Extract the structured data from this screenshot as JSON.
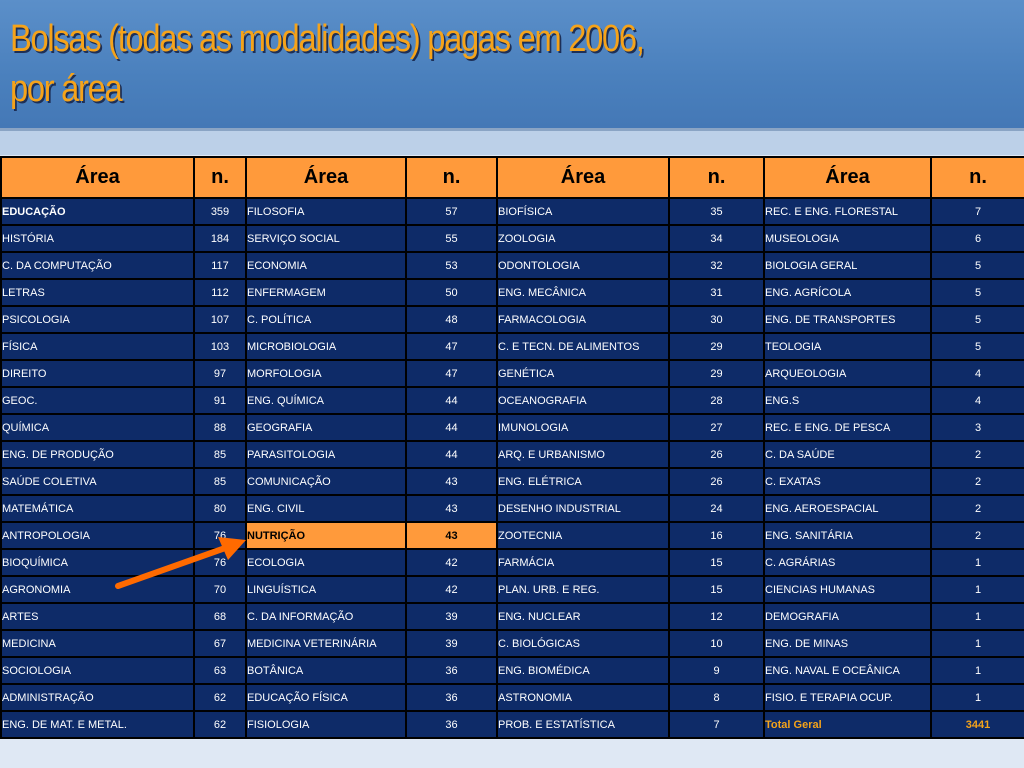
{
  "slide": {
    "title_line1": "Bolsas (todas as modalidades) pagas em 2006,",
    "title_line2": "por área"
  },
  "colors": {
    "title": "#f5a31a",
    "header_bg": "#4a80bd",
    "table_cell_bg": "#0e2b68",
    "column_header_bg": "#ff9a3b",
    "highlight_bg": "#ff9a3b",
    "arrow": "#ff6a00"
  },
  "icons": {
    "arrow": "arrow-icon"
  },
  "table": {
    "headers": [
      "Área",
      "n.",
      "Área",
      "n.",
      "Área",
      "n.",
      "Área",
      "n."
    ],
    "rows": [
      [
        "EDUCAÇÃO",
        "359",
        "FILOSOFIA",
        "57",
        "BIOFÍSICA",
        "35",
        "REC. E ENG. FLORESTAL",
        "7"
      ],
      [
        "HISTÓRIA",
        "184",
        "SERVIÇO SOCIAL",
        "55",
        "ZOOLOGIA",
        "34",
        "MUSEOLOGIA",
        "6"
      ],
      [
        "C. DA COMPUTAÇÃO",
        "117",
        "ECONOMIA",
        "53",
        "ODONTOLOGIA",
        "32",
        "BIOLOGIA GERAL",
        "5"
      ],
      [
        "LETRAS",
        "112",
        "ENFERMAGEM",
        "50",
        "ENG. MECÂNICA",
        "31",
        "ENG. AGRÍCOLA",
        "5"
      ],
      [
        "PSICOLOGIA",
        "107",
        "C. POLÍTICA",
        "48",
        "FARMACOLOGIA",
        "30",
        "ENG. DE TRANSPORTES",
        "5"
      ],
      [
        "FÍSICA",
        "103",
        "MICROBIOLOGIA",
        "47",
        "C. E TECN. DE ALIMENTOS",
        "29",
        "TEOLOGIA",
        "5"
      ],
      [
        "DIREITO",
        "97",
        "MORFOLOGIA",
        "47",
        "GENÉTICA",
        "29",
        "ARQUEOLOGIA",
        "4"
      ],
      [
        "GEOC.",
        "91",
        "ENG. QUÍMICA",
        "44",
        "OCEANOGRAFIA",
        "28",
        "ENG.S",
        "4"
      ],
      [
        "QUÍMICA",
        "88",
        "GEOGRAFIA",
        "44",
        "IMUNOLOGIA",
        "27",
        "REC. E ENG. DE PESCA",
        "3"
      ],
      [
        "ENG. DE PRODUÇÃO",
        "85",
        "PARASITOLOGIA",
        "44",
        "ARQ. E URBANISMO",
        "26",
        "C. DA SAÚDE",
        "2"
      ],
      [
        "SAÚDE COLETIVA",
        "85",
        "COMUNICAÇÃO",
        "43",
        "ENG. ELÉTRICA",
        "26",
        "C. EXATAS",
        "2"
      ],
      [
        "MATEMÁTICA",
        "80",
        "ENG. CIVIL",
        "43",
        "DESENHO INDUSTRIAL",
        "24",
        "ENG. AEROESPACIAL",
        "2"
      ],
      [
        "ANTROPOLOGIA",
        "76",
        "NUTRIÇÃO",
        "43",
        "ZOOTECNIA",
        "16",
        "ENG. SANITÁRIA",
        "2"
      ],
      [
        "BIOQUÍMICA",
        "76",
        "ECOLOGIA",
        "42",
        "FARMÁCIA",
        "15",
        "C. AGRÁRIAS",
        "1"
      ],
      [
        "AGRONOMIA",
        "70",
        "LINGUÍSTICA",
        "42",
        "PLAN. URB. E REG.",
        "15",
        "CIENCIAS HUMANAS",
        "1"
      ],
      [
        "ARTES",
        "68",
        "C. DA INFORMAÇÃO",
        "39",
        "ENG. NUCLEAR",
        "12",
        "DEMOGRAFIA",
        "1"
      ],
      [
        "MEDICINA",
        "67",
        "MEDICINA VETERINÁRIA",
        "39",
        "C. BIOLÓGICAS",
        "10",
        "ENG. DE MINAS",
        "1"
      ],
      [
        "SOCIOLOGIA",
        "63",
        "BOTÂNICA",
        "36",
        "ENG. BIOMÉDICA",
        "9",
        "ENG. NAVAL E OCEÂNICA",
        "1"
      ],
      [
        "ADMINISTRAÇÃO",
        "62",
        "EDUCAÇÃO FÍSICA",
        "36",
        "ASTRONOMIA",
        "8",
        "FISIO. E TERAPIA OCUP.",
        "1"
      ],
      [
        "ENG. DE MAT. E METAL.",
        "62",
        "FISIOLOGIA",
        "36",
        "PROB. E ESTATÍSTICA",
        "7",
        "Total Geral",
        "3441"
      ]
    ],
    "highlighted_area": "NUTRIÇÃO"
  }
}
